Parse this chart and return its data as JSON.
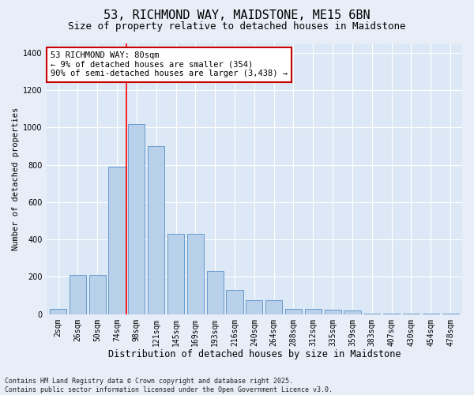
{
  "title1": "53, RICHMOND WAY, MAIDSTONE, ME15 6BN",
  "title2": "Size of property relative to detached houses in Maidstone",
  "xlabel": "Distribution of detached houses by size in Maidstone",
  "ylabel": "Number of detached properties",
  "categories": [
    "2sqm",
    "26sqm",
    "50sqm",
    "74sqm",
    "98sqm",
    "121sqm",
    "145sqm",
    "169sqm",
    "193sqm",
    "216sqm",
    "240sqm",
    "264sqm",
    "288sqm",
    "312sqm",
    "335sqm",
    "359sqm",
    "383sqm",
    "407sqm",
    "430sqm",
    "454sqm",
    "478sqm"
  ],
  "values": [
    30,
    210,
    210,
    790,
    1020,
    900,
    430,
    430,
    230,
    130,
    75,
    75,
    30,
    30,
    25,
    20,
    5,
    3,
    2,
    1,
    1
  ],
  "bar_color": "#b8d0ea",
  "bar_edge_color": "#6699cc",
  "vline_color": "red",
  "annotation_text": "53 RICHMOND WAY: 80sqm\n← 9% of detached houses are smaller (354)\n90% of semi-detached houses are larger (3,438) →",
  "annotation_box_color": "#ffffff",
  "annotation_box_edge": "#cc0000",
  "ylim": [
    0,
    1450
  ],
  "yticks": [
    0,
    200,
    400,
    600,
    800,
    1000,
    1200,
    1400
  ],
  "fig_bg": "#e8eef8",
  "plot_bg": "#dce8f5",
  "grid_color": "#ffffff",
  "footer": "Contains HM Land Registry data © Crown copyright and database right 2025.\nContains public sector information licensed under the Open Government Licence v3.0.",
  "title1_fontsize": 11,
  "title2_fontsize": 9,
  "xlabel_fontsize": 8.5,
  "ylabel_fontsize": 7.5,
  "tick_fontsize": 7,
  "annotation_fontsize": 7.5,
  "footer_fontsize": 6
}
